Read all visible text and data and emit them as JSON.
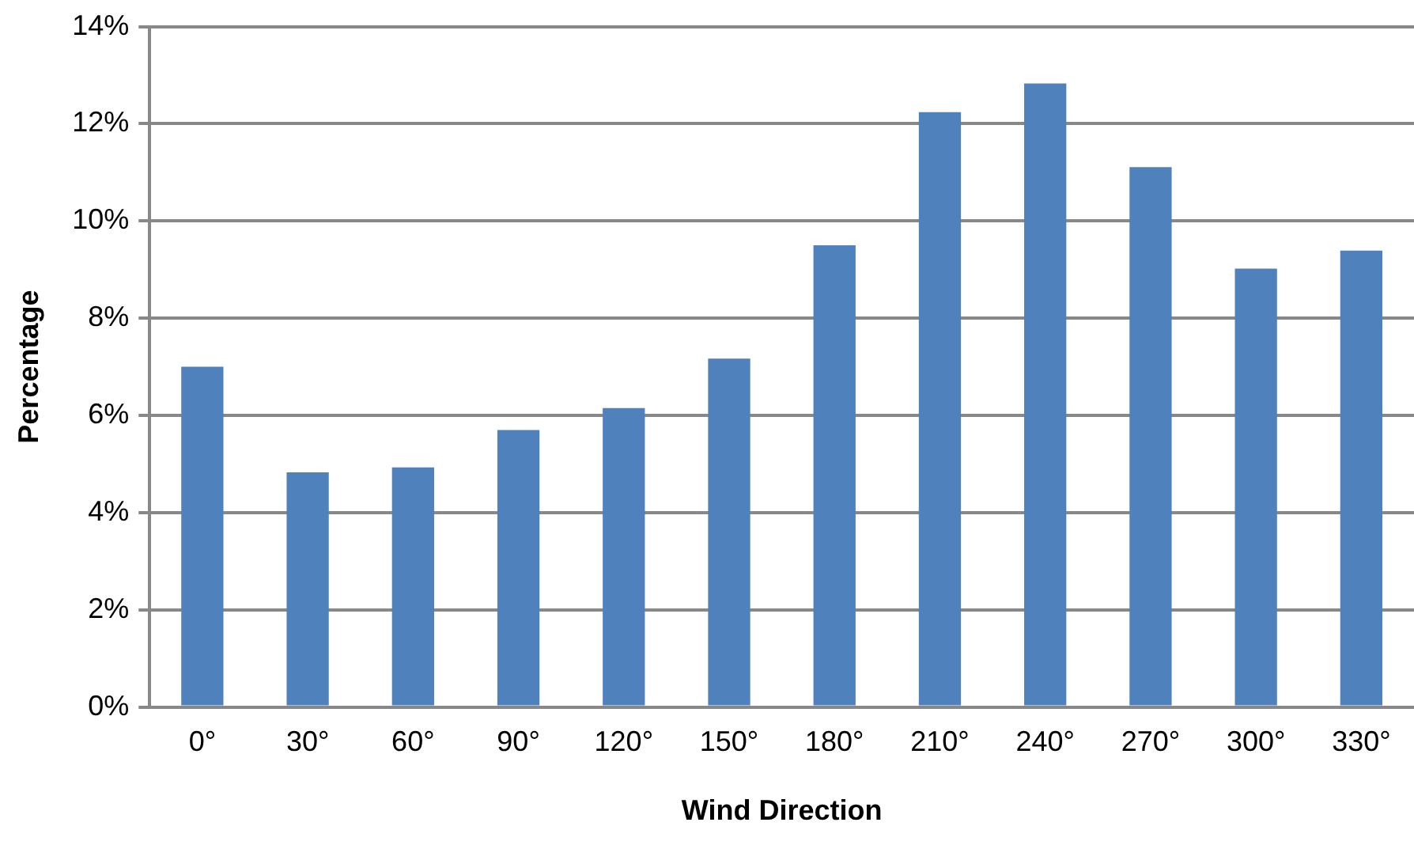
{
  "chart_data": {
    "type": "bar",
    "xlabel": "Wind Direction",
    "ylabel": "Percentage",
    "categories": [
      "0°",
      "30°",
      "60°",
      "90°",
      "120°",
      "150°",
      "180°",
      "210°",
      "240°",
      "270°",
      "300°",
      "330°"
    ],
    "values": [
      7.0,
      4.83,
      4.93,
      5.7,
      6.15,
      7.17,
      9.5,
      12.24,
      12.83,
      11.11,
      9.02,
      9.39
    ],
    "color": "#4f81bd",
    "ylim": [
      0,
      14
    ],
    "yticks": [
      {
        "value": 0,
        "label": "0%"
      },
      {
        "value": 2,
        "label": "2%"
      },
      {
        "value": 4,
        "label": "4%"
      },
      {
        "value": 6,
        "label": "6%"
      },
      {
        "value": 8,
        "label": "8%"
      },
      {
        "value": 10,
        "label": "10%"
      },
      {
        "value": 12,
        "label": "12%"
      },
      {
        "value": 14,
        "label": "14%"
      }
    ],
    "grid": "y"
  }
}
